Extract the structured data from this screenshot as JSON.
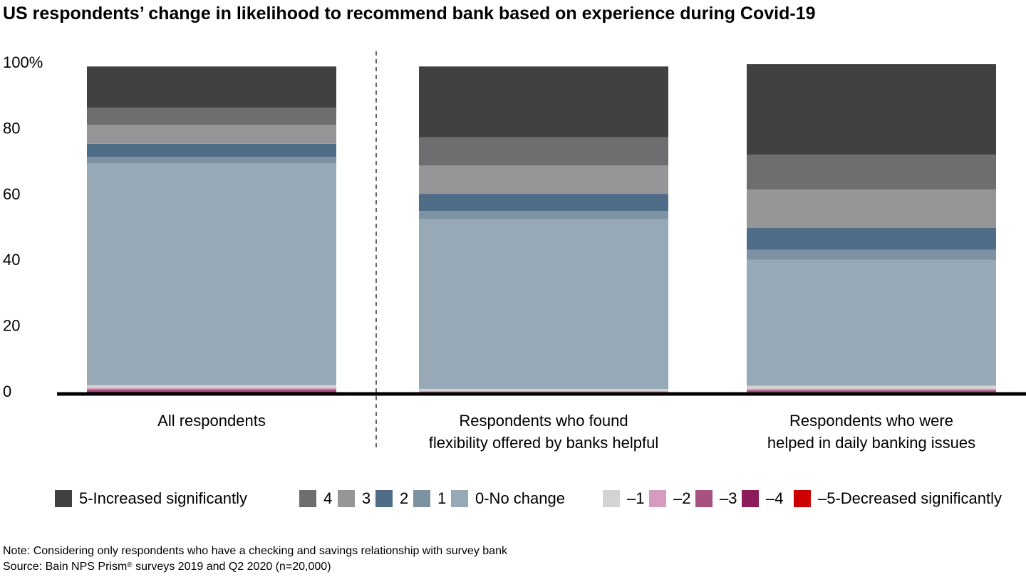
{
  "chart_data": {
    "type": "bar",
    "stacked": true,
    "title": "US respondents’ change in likelihood to recommend bank based on experience during Covid-19",
    "categories": [
      "All respondents",
      "Respondents who found flexibility offered by banks helpful",
      "Respondents who were helped in daily banking issues"
    ],
    "category_lines": [
      [
        "All respondents"
      ],
      [
        "Respondents who found",
        "flexibility offered by banks helpful"
      ],
      [
        "Respondents who were",
        "helped in daily banking issues"
      ]
    ],
    "ylim": [
      0,
      100
    ],
    "yticks": [
      0,
      20,
      40,
      60,
      80,
      100
    ],
    "ytick_labels": [
      "0",
      "20",
      "40",
      "60",
      "80",
      "100%"
    ],
    "series": [
      {
        "name": "–5-Decreased significantly",
        "color": "#cc0000",
        "values": [
          0.3,
          0.1,
          0.2
        ]
      },
      {
        "name": "–4",
        "color": "#8c1c5c",
        "values": [
          0.5,
          0.2,
          0.4
        ]
      },
      {
        "name": "–3",
        "color": "#a8527f",
        "values": [
          0.6,
          0.3,
          0.5
        ]
      },
      {
        "name": "–2",
        "color": "#d69cc0",
        "values": [
          0.4,
          0.3,
          0.5
        ]
      },
      {
        "name": "–1",
        "color": "#d3d3d3",
        "values": [
          0.9,
          0.6,
          0.9
        ]
      },
      {
        "name": "0-No change",
        "color": "#97a9b6",
        "values": [
          67.3,
          51.6,
          38.3
        ]
      },
      {
        "name": "1",
        "color": "#7d93a3",
        "values": [
          2.0,
          2.5,
          3.0
        ]
      },
      {
        "name": "2",
        "color": "#4f6d87",
        "values": [
          4.0,
          5.2,
          6.7
        ]
      },
      {
        "name": "3",
        "color": "#969698",
        "values": [
          5.8,
          8.6,
          11.6
        ]
      },
      {
        "name": "4",
        "color": "#6e6e70",
        "values": [
          5.2,
          8.6,
          10.6
        ]
      },
      {
        "name": "5-Increased significantly",
        "color": "#404040",
        "values": [
          12.5,
          21.5,
          27.5
        ]
      }
    ],
    "legend_order": [
      "5-Increased significantly",
      "4",
      "3",
      "2",
      "1",
      "0-No change",
      "–1",
      "–2",
      "–3",
      "–4",
      "–5-Decreased significantly"
    ],
    "legend_position": "bottom"
  },
  "footer": {
    "note": "Note: Considering only respondents who have a checking and savings relationship with survey bank",
    "source_prefix": "Source: Bain NPS Prism",
    "source_reg": "®",
    "source_suffix": " surveys 2019 and Q2 2020 (n=20,000)"
  }
}
